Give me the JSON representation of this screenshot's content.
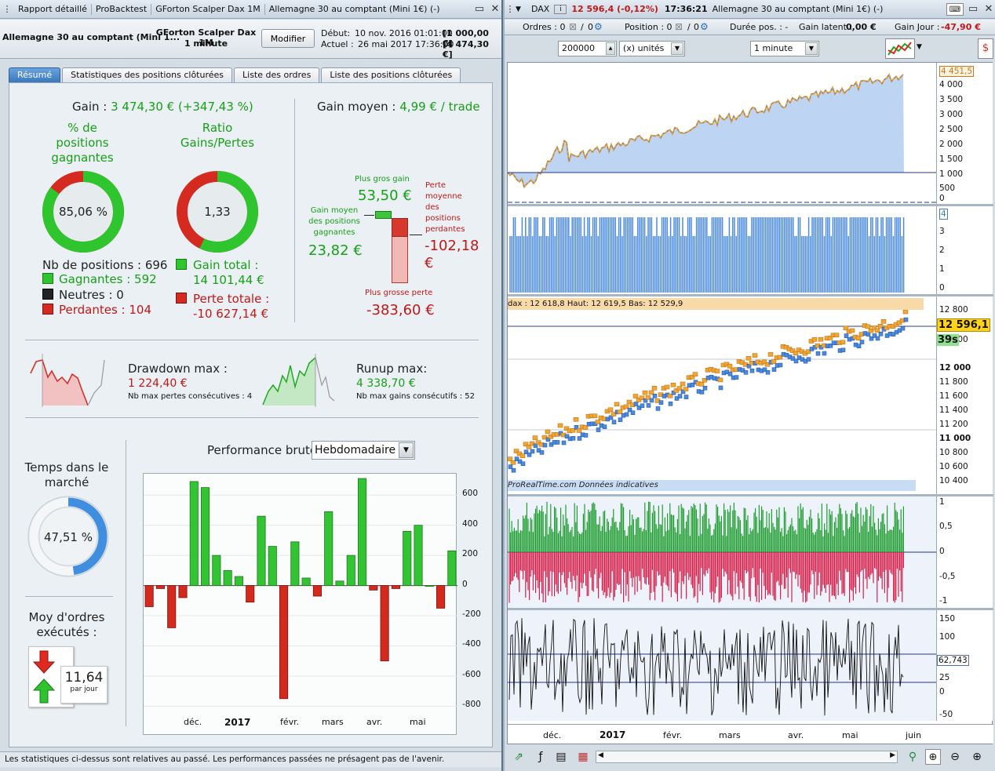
{
  "left_window": {
    "tabs_title": [
      "Rapport détaillé",
      "ProBacktest",
      "GForton Scalper Dax 1M",
      "Allemagne 30 au comptant (Mini 1€) (-)"
    ],
    "instrument": "Allemagne 30 au comptant (Mini 1...",
    "strategy": "GForton Scalper Dax 1M",
    "timeframe": "1 minute",
    "modify_button": "Modifier",
    "start_label": "Début:",
    "start_date": "10 nov. 2016 01:01:00",
    "start_capital": "[1 000,00 €]",
    "current_label": "Actuel :",
    "current_date": "26 mai 2017 17:36:00",
    "current_capital": "[4 474,30 €]",
    "tabs": [
      "Résumé",
      "Statistiques des positions clôturées",
      "Liste des ordres",
      "Liste des positions clôturées"
    ],
    "gain_label": "Gain :",
    "gain_value": "3 474,30 € (+347,43 %)",
    "pct_winning_label": "% de positions gagnantes",
    "pct_winning_value": "85,06 %",
    "pct_winning_ratio": 0.8506,
    "ratio_label": "Ratio Gains/Pertes",
    "ratio_value": "1,33",
    "nb_positions": "Nb de positions : 696",
    "winners": "Gagnantes : 592",
    "neutral": "Neutres : 0",
    "losers": "Perdantes : 104",
    "total_gain_label": "Gain total :",
    "total_gain": "14 101,44 €",
    "total_loss_label": "Perte totale :",
    "total_loss": "-10 627,14 €",
    "avg_gain_label": "Gain moyen :",
    "avg_gain_value": "4,99 € / trade",
    "largest_gain_label": "Plus gros gain",
    "largest_gain": "53,50 €",
    "avg_win_label": "Gain moyen des positions gagnantes",
    "avg_win": "23,82 €",
    "avg_loss_label": "Perte moyenne des positions perdantes",
    "avg_loss": "-102,18 €",
    "largest_loss_label": "Plus grosse perte",
    "largest_loss": "-383,60 €",
    "drawdown_label": "Drawdown max :",
    "drawdown_value": "1 224,40 €",
    "drawdown_sub": "Nb max pertes consécutives : 4",
    "runup_label": "Runup max:",
    "runup_value": "4 338,70 €",
    "runup_sub": "Nb max gains consécutifs : 52",
    "time_in_market_label": "Temps dans le marché",
    "time_in_market": "47,51 %",
    "time_in_market_ratio": 0.4751,
    "avg_orders_label": "Moy d'ordres exécutés :",
    "avg_orders": "11,64",
    "avg_orders_unit": "par jour",
    "perf_label": "Performance brute",
    "perf_period": "Hebdomadaire",
    "footer": "Les statistiques ci-dessus sont relatives au passé. Les performances passées ne présagent pas de l'avenir."
  },
  "right_window": {
    "title_symbol": "DAX",
    "title_change": "12 596,4 (-0,12%)",
    "title_time": "17:36:21",
    "title_name": "Allemagne 30 au comptant (Mini 1€) (-)",
    "orders_label": "Ordres : 0",
    "position_label": "Position : 0",
    "duration_label": "Durée pos. : -",
    "latent_label": "Gain latent :",
    "latent_value": "0,00 €",
    "day_gain_label": "Gain Jour :",
    "day_gain_value": "-47,90 €",
    "quantity": "200000",
    "unit": "(x) unités",
    "interval": "1 minute",
    "price_last": "12 596,1",
    "countdown": "39s",
    "osc_value": "62,743",
    "equity_label": "4 451,5",
    "lots_label": "4",
    "price_header": "dax : 12 618,8  Haut: 12 619,5  Bas: 12 529,9",
    "watermark": "ProRealTime.com Données indicatives"
  },
  "chart_data": {
    "type": "bar",
    "title": "Performance brute",
    "x_ticks": [
      "déc.",
      "2017",
      "févr.",
      "mars",
      "avr.",
      "mai"
    ],
    "ylim": [
      -850,
      700
    ],
    "y_ticks": [
      600,
      400,
      200,
      0,
      -200,
      -400,
      -600,
      -800
    ],
    "values": [
      -140,
      -20,
      -280,
      -80,
      690,
      650,
      200,
      100,
      60,
      -110,
      460,
      260,
      -750,
      290,
      50,
      -70,
      490,
      30,
      200,
      710,
      -30,
      -500,
      -20,
      360,
      400,
      0,
      -150,
      230
    ]
  }
}
